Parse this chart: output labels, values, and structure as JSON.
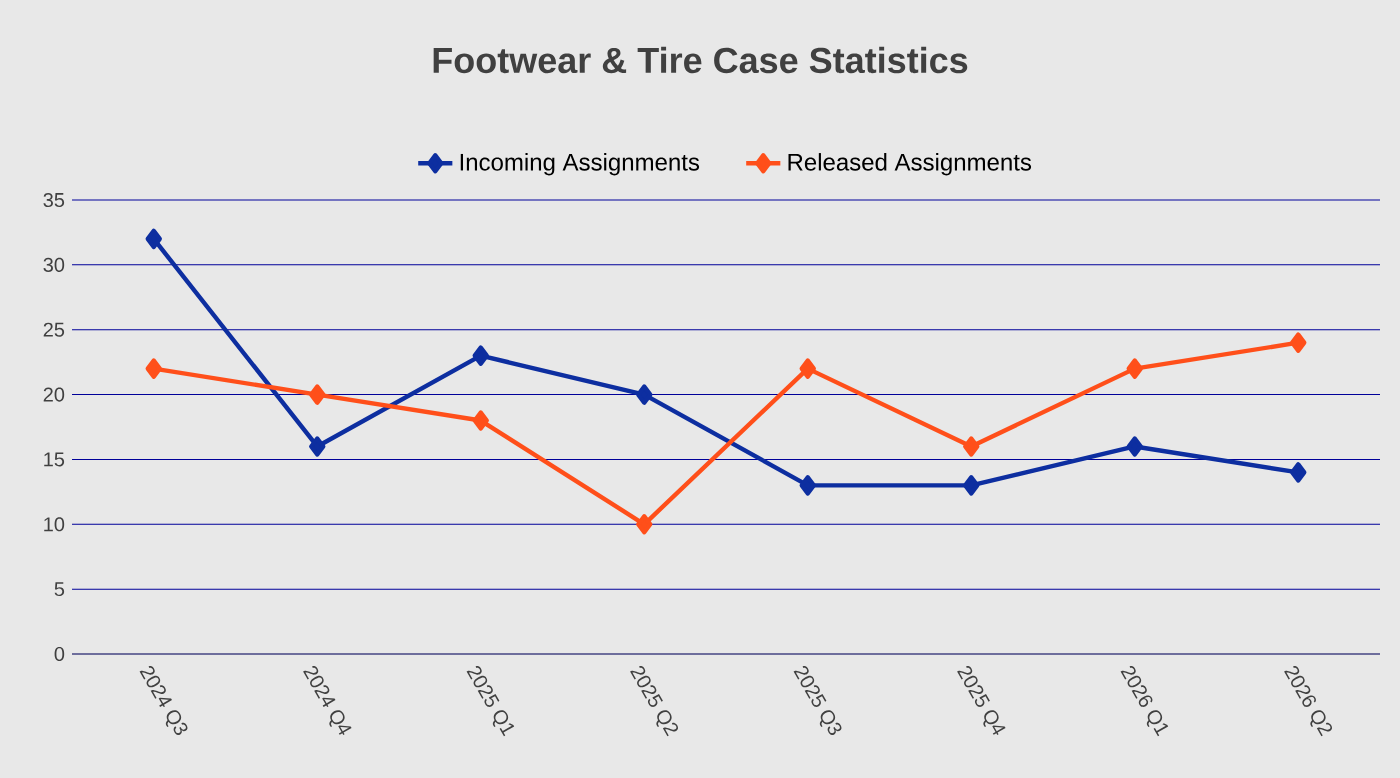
{
  "chart_data": {
    "type": "line",
    "title": "Footwear & Tire Case Statistics",
    "categories": [
      "2024 Q3",
      "2024 Q4",
      "2025 Q1",
      "2025 Q2",
      "2025 Q3",
      "2025 Q4",
      "2026 Q1",
      "2026 Q2"
    ],
    "series": [
      {
        "name": "Incoming Assignments",
        "color": "#0d2ea0",
        "values": [
          32,
          16,
          23,
          20,
          13,
          13,
          16,
          14
        ]
      },
      {
        "name": "Released Assignments",
        "color": "#ff4f1a",
        "values": [
          22,
          20,
          18,
          10,
          22,
          16,
          22,
          24
        ]
      }
    ],
    "ylim": [
      0,
      35
    ],
    "yticks": [
      0,
      5,
      10,
      15,
      20,
      25,
      30,
      35
    ],
    "grid": "y",
    "legend": "top",
    "marker": "diamond",
    "line_style": "solid"
  }
}
